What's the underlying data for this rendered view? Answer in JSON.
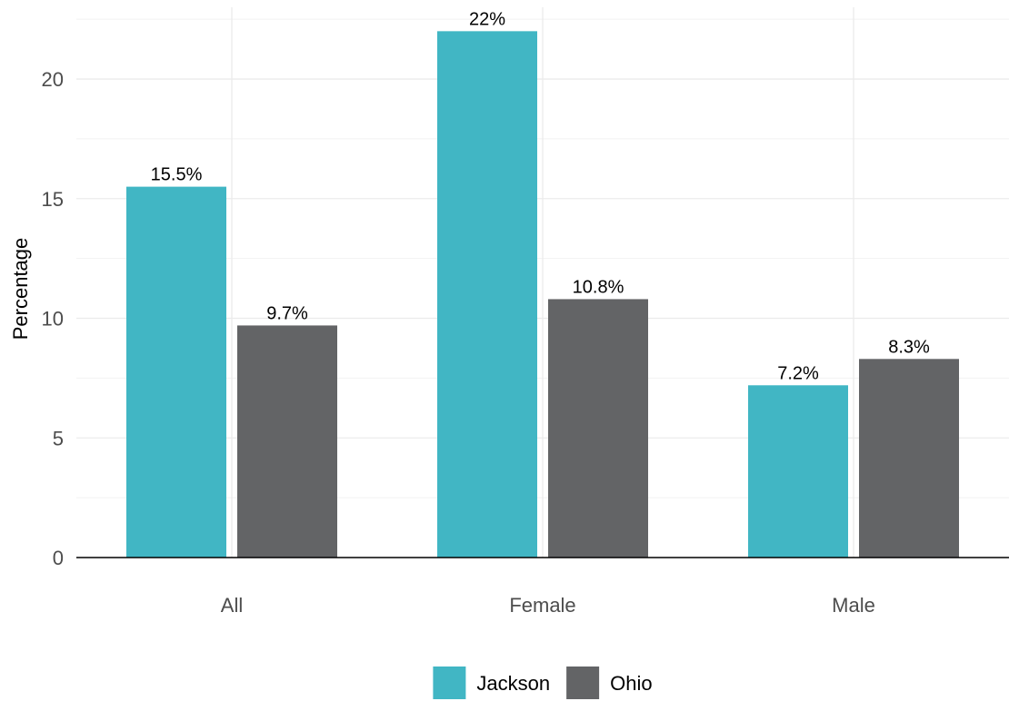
{
  "chart_data": {
    "type": "bar",
    "categories": [
      "All",
      "Female",
      "Male"
    ],
    "series": [
      {
        "name": "Jackson",
        "values": [
          15.5,
          22,
          7.2
        ],
        "labels": [
          "15.5%",
          "22%",
          "7.2%"
        ],
        "color": "#41b6c4"
      },
      {
        "name": "Ohio",
        "values": [
          9.7,
          10.8,
          8.3
        ],
        "labels": [
          "9.7%",
          "10.8%",
          "8.3%"
        ],
        "color": "#636466"
      }
    ],
    "title": "",
    "xlabel": "",
    "ylabel": "Percentage",
    "ylim": [
      0,
      23
    ],
    "yticks": [
      0,
      5,
      10,
      15,
      20
    ],
    "grid": true,
    "legend_position": "bottom"
  }
}
